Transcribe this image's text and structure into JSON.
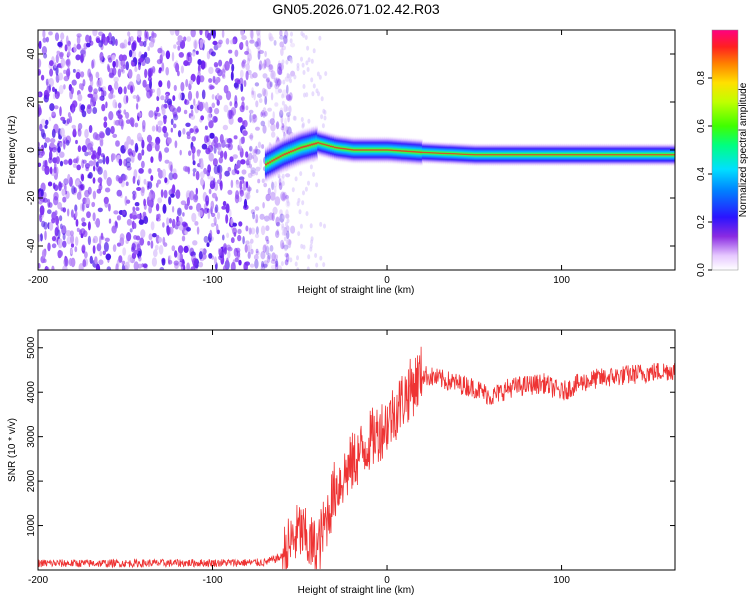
{
  "title": "GN05.2026.071.02.42.R03",
  "chart_data": [
    {
      "type": "heatmap",
      "name": "spectrogram",
      "xlabel": "Height of straight line (km)",
      "ylabel": "Frequency (Hz)",
      "xlim": [
        -200,
        165
      ],
      "ylim": [
        -50,
        50
      ],
      "xticks": [
        -200,
        -100,
        0,
        100
      ],
      "yticks": [
        -40,
        -20,
        0,
        20,
        40
      ],
      "colorbar": {
        "label": "Normalized spectral amplitude",
        "range": [
          0,
          1
        ],
        "ticks": [
          "0.0",
          "0.2",
          "0.4",
          "0.6",
          "0.8"
        ],
        "tick_values": [
          0.0,
          0.2,
          0.4,
          0.6,
          0.8
        ]
      },
      "noise_region_km": [
        -200,
        -60
      ],
      "carrier_track": [
        {
          "x": -70,
          "y": -6
        },
        {
          "x": -60,
          "y": -2
        },
        {
          "x": -50,
          "y": 1
        },
        {
          "x": -40,
          "y": 3
        },
        {
          "x": -30,
          "y": 1
        },
        {
          "x": -20,
          "y": 0
        },
        {
          "x": -10,
          "y": 0
        },
        {
          "x": 0,
          "y": 0
        },
        {
          "x": 20,
          "y": -1
        },
        {
          "x": 50,
          "y": -2
        },
        {
          "x": 100,
          "y": -2
        },
        {
          "x": 165,
          "y": -2
        }
      ]
    },
    {
      "type": "line",
      "name": "snr",
      "xlabel": "Height of straight line (km)",
      "ylabel": "SNR (10 * v/v)",
      "xlim": [
        -200,
        165
      ],
      "ylim": [
        0,
        5400
      ],
      "xticks": [
        -200,
        -100,
        0,
        100
      ],
      "yticks": [
        1000,
        2000,
        3000,
        4000,
        5000
      ],
      "color": "#ee3333",
      "series": [
        {
          "name": "SNR",
          "points": [
            {
              "x": -200,
              "y": 150
            },
            {
              "x": -150,
              "y": 150
            },
            {
              "x": -100,
              "y": 160
            },
            {
              "x": -70,
              "y": 170
            },
            {
              "x": -60,
              "y": 300
            },
            {
              "x": -50,
              "y": 900
            },
            {
              "x": -45,
              "y": 600
            },
            {
              "x": -40,
              "y": 450
            },
            {
              "x": -35,
              "y": 1100
            },
            {
              "x": -30,
              "y": 1800
            },
            {
              "x": -20,
              "y": 2400
            },
            {
              "x": -10,
              "y": 2900
            },
            {
              "x": 0,
              "y": 3300
            },
            {
              "x": 10,
              "y": 3900
            },
            {
              "x": 20,
              "y": 4400
            },
            {
              "x": 40,
              "y": 4200
            },
            {
              "x": 50,
              "y": 4100
            },
            {
              "x": 60,
              "y": 3900
            },
            {
              "x": 70,
              "y": 4100
            },
            {
              "x": 90,
              "y": 4200
            },
            {
              "x": 100,
              "y": 4000
            },
            {
              "x": 110,
              "y": 4200
            },
            {
              "x": 120,
              "y": 4300
            },
            {
              "x": 140,
              "y": 4400
            },
            {
              "x": 165,
              "y": 4500
            }
          ]
        }
      ]
    }
  ]
}
